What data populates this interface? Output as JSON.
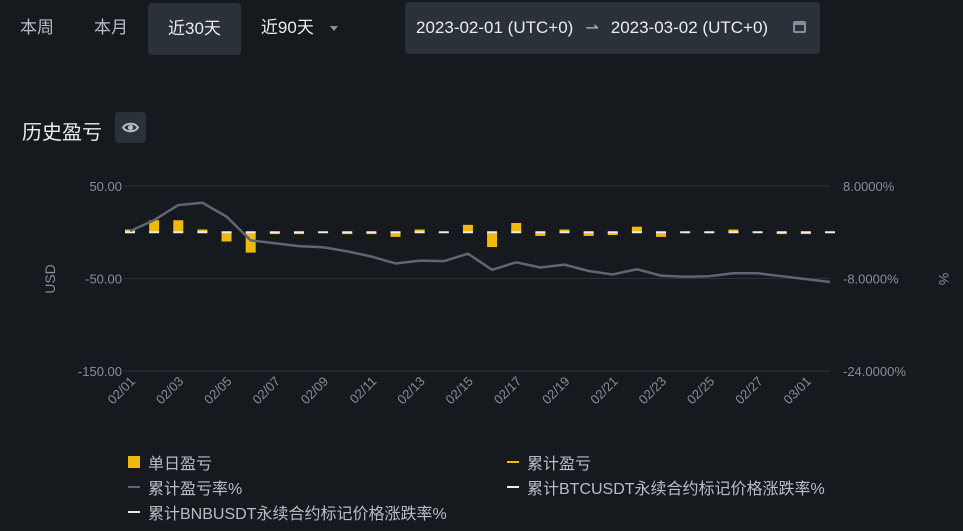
{
  "tabs": [
    {
      "label": "本周",
      "active": false
    },
    {
      "label": "本月",
      "active": false
    },
    {
      "label": "近30天",
      "active": true
    }
  ],
  "dropdown": {
    "label": "近90天"
  },
  "date_range": {
    "start": "2023-02-01 (UTC+0)",
    "end": "2023-03-02 (UTC+0)"
  },
  "section_title": "历史盈亏",
  "colors": {
    "bar": "#f0b90b",
    "cum_line": "#5e6673",
    "btc": "#eaecef",
    "bnb": "#eaecef"
  },
  "chart_data": {
    "type": "bar",
    "title": "",
    "ylabel_left": "USD",
    "ylabel_right": "%",
    "ylim_left": [
      -150,
      50
    ],
    "ylim_right": [
      -24,
      8
    ],
    "left_ticks": [
      "50.00",
      "-50.00",
      "-150.00"
    ],
    "right_ticks": [
      "8.0000%",
      "-8.0000%",
      "-24.0000%"
    ],
    "grid": true,
    "x": [
      "02/01",
      "02/02",
      "02/03",
      "02/04",
      "02/05",
      "02/06",
      "02/07",
      "02/08",
      "02/09",
      "02/10",
      "02/11",
      "02/12",
      "02/13",
      "02/14",
      "02/15",
      "02/16",
      "02/17",
      "02/18",
      "02/19",
      "02/20",
      "02/21",
      "02/22",
      "02/23",
      "02/24",
      "02/25",
      "02/26",
      "02/27",
      "02/28",
      "03/01",
      "03/02"
    ],
    "x_tick_labels": [
      "02/01",
      "02/03",
      "02/05",
      "02/07",
      "02/09",
      "02/11",
      "02/13",
      "02/15",
      "02/17",
      "02/19",
      "02/21",
      "02/23",
      "02/25",
      "02/27",
      "03/01"
    ],
    "series": [
      {
        "name": "单日盈亏",
        "kind": "bar",
        "axis": "left",
        "values": [
          3,
          13,
          13,
          3,
          -10,
          -22,
          -2,
          -2,
          0,
          -2,
          -2,
          -5,
          3,
          0,
          8,
          -16,
          10,
          -4,
          3,
          -4,
          -3,
          6,
          -5,
          0,
          0,
          3,
          0,
          -2,
          -2,
          0
        ]
      },
      {
        "name": "累计盈亏",
        "kind": "tick",
        "axis": "left",
        "values": [
          0,
          0,
          0,
          0,
          0,
          0,
          0,
          0,
          0,
          0,
          0,
          0,
          0,
          0,
          0,
          0,
          0,
          0,
          0,
          0,
          0,
          0,
          0,
          0,
          0,
          0,
          0,
          0,
          0,
          0
        ]
      },
      {
        "name": "累计盈亏率%",
        "kind": "line",
        "axis": "right",
        "values": [
          0.2,
          2.1,
          4.7,
          5.1,
          2.7,
          -1.4,
          -1.9,
          -2.4,
          -2.6,
          -3.3,
          -4.2,
          -5.4,
          -4.9,
          -5,
          -3.7,
          -6.5,
          -5.2,
          -6.1,
          -5.6,
          -6.7,
          -7.3,
          -6.4,
          -7.5,
          -7.7,
          -7.6,
          -7.1,
          -7.1,
          -7.6,
          -8.1,
          -8.6
        ]
      },
      {
        "name": "累计BTCUSDT永续合约标记价格涨跌率%",
        "kind": "tick",
        "axis": "right",
        "values": [
          0,
          0,
          0,
          0,
          0,
          0,
          0,
          0,
          0,
          0,
          0,
          0,
          0,
          0,
          0,
          0,
          0,
          0,
          0,
          0,
          0,
          0,
          0,
          0,
          0,
          0,
          0,
          0,
          0,
          0
        ]
      },
      {
        "name": "累计BNBUSDT永续合约标记价格涨跌率%",
        "kind": "tick",
        "axis": "right",
        "values": [
          0,
          0,
          0,
          0,
          0,
          0,
          0,
          0,
          0,
          0,
          0,
          0,
          0,
          0,
          0,
          0,
          0,
          0,
          0,
          0,
          0,
          0,
          0,
          0,
          0,
          0,
          0,
          0,
          0,
          0
        ]
      }
    ],
    "legend": [
      {
        "label": "单日盈亏",
        "type": "box",
        "color": "#f0b90b"
      },
      {
        "label": "累计盈亏",
        "type": "line",
        "color": "#f0b90b"
      },
      {
        "label": "累计盈亏率%",
        "type": "line",
        "color": "#5e6673"
      },
      {
        "label": "累计BTCUSDT永续合约标记价格涨跌率%",
        "type": "line",
        "color": "#eaecef"
      },
      {
        "label": "累计BNBUSDT永续合约标记价格涨跌率%",
        "type": "line",
        "color": "#eaecef"
      }
    ]
  }
}
